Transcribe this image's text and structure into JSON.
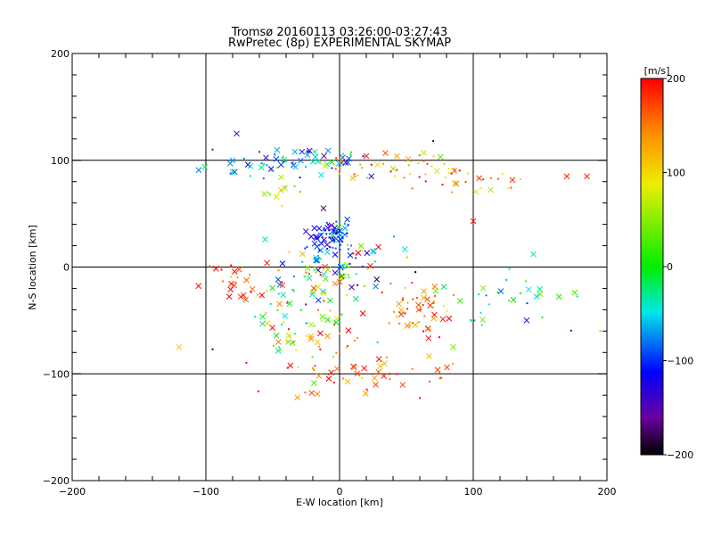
{
  "chart_data": {
    "type": "scatter",
    "title": "Tromsø 20160113 03:26:00-03:27:43",
    "subtitle": "RwPretec (8p) EXPERIMENTAL SKYMAP",
    "xlabel": "E-W location [km]",
    "ylabel": "N-S location [km]",
    "xlim": [
      -200,
      200
    ],
    "ylim": [
      -200,
      200
    ],
    "xticks": [
      -200,
      -100,
      0,
      100,
      200
    ],
    "yticks": [
      -200,
      -100,
      0,
      100,
      200
    ],
    "xtick_labels": [
      "−200",
      "−100",
      "0",
      "100",
      "200"
    ],
    "ytick_labels": [
      "−200",
      "−100",
      "0",
      "100",
      "200"
    ],
    "grid": true,
    "colorbar": {
      "label": "[m/s]",
      "range": [
        -200,
        200
      ],
      "ticks": [
        200,
        100,
        0,
        -100,
        -200
      ],
      "tick_labels": [
        "200",
        "100",
        "0",
        "−100",
        "−200"
      ],
      "colormap": "black-purple-blue-cyan-green-yellow-red"
    },
    "markers": [
      "x",
      "dot"
    ],
    "clusters": [
      {
        "cx": -8,
        "cy": 28,
        "rx": 8,
        "ry": 8,
        "n": 70,
        "v": -100,
        "vspread": 25
      },
      {
        "cx": -20,
        "cy": 100,
        "rx": 28,
        "ry": 7,
        "n": 40,
        "v": -80,
        "vspread": 40
      },
      {
        "cx": -60,
        "cy": 95,
        "rx": 18,
        "ry": 6,
        "n": 20,
        "v": -75,
        "vspread": 30
      },
      {
        "cx": 40,
        "cy": 95,
        "rx": 28,
        "ry": 8,
        "n": 50,
        "v": 120,
        "vspread": 60
      },
      {
        "cx": 90,
        "cy": 75,
        "rx": 25,
        "ry": 8,
        "n": 20,
        "v": 150,
        "vspread": 60
      },
      {
        "cx": -40,
        "cy": 70,
        "rx": 10,
        "ry": 8,
        "n": 12,
        "v": 30,
        "vspread": 30
      },
      {
        "cx": 0,
        "cy": 0,
        "rx": 25,
        "ry": 15,
        "n": 90,
        "v": 0,
        "vspread": 110
      },
      {
        "cx": -75,
        "cy": -12,
        "rx": 15,
        "ry": 10,
        "n": 30,
        "v": 180,
        "vspread": 25
      },
      {
        "cx": 60,
        "cy": -40,
        "rx": 12,
        "ry": 15,
        "n": 50,
        "v": 160,
        "vspread": 40
      },
      {
        "cx": 130,
        "cy": -30,
        "rx": 45,
        "ry": 15,
        "n": 35,
        "v": -30,
        "vspread": 50
      },
      {
        "cx": -20,
        "cy": -70,
        "rx": 25,
        "ry": 22,
        "n": 60,
        "v": 140,
        "vspread": 60
      },
      {
        "cx": 35,
        "cy": -100,
        "rx": 25,
        "ry": 10,
        "n": 35,
        "v": 170,
        "vspread": 30
      },
      {
        "cx": -30,
        "cy": -45,
        "rx": 20,
        "ry": 15,
        "n": 30,
        "v": 20,
        "vspread": 60
      }
    ],
    "singles": [
      {
        "x": -120,
        "y": -75,
        "v": 110,
        "m": "x"
      },
      {
        "x": -95,
        "y": -77,
        "v": -180,
        "m": "dot"
      },
      {
        "x": 170,
        "y": 85,
        "v": 190,
        "m": "x"
      },
      {
        "x": 185,
        "y": 85,
        "v": 190,
        "m": "x"
      },
      {
        "x": 195,
        "y": -60,
        "v": 40,
        "m": "dot"
      },
      {
        "x": 145,
        "y": 12,
        "v": -40,
        "m": "x"
      },
      {
        "x": 70,
        "y": 118,
        "v": -190,
        "m": "dot"
      },
      {
        "x": -95,
        "y": 110,
        "v": -160,
        "m": "dot"
      },
      {
        "x": -77,
        "y": 125,
        "v": -130,
        "m": "x"
      },
      {
        "x": 100,
        "y": 43,
        "v": 190,
        "m": "x"
      },
      {
        "x": -12,
        "y": 55,
        "v": -170,
        "m": "x"
      },
      {
        "x": 85,
        "y": -75,
        "v": 40,
        "m": "x"
      }
    ]
  }
}
